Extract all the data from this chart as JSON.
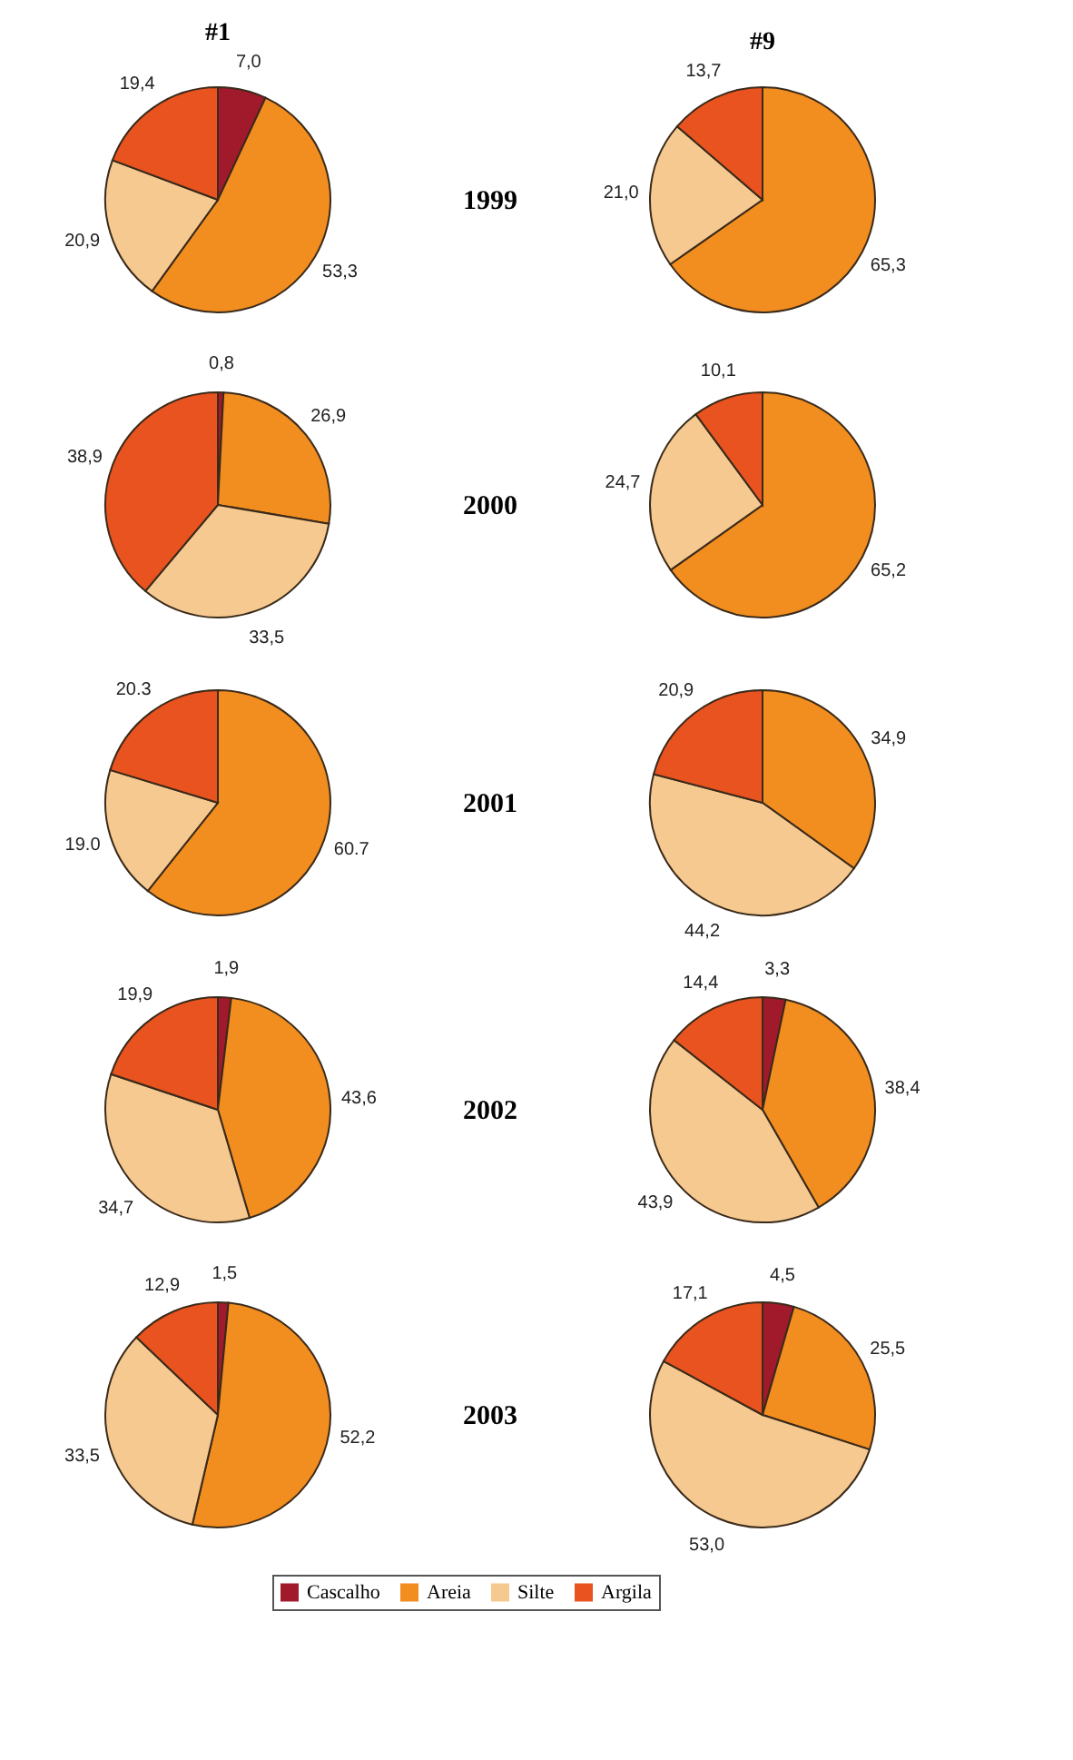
{
  "chart_data": [
    {
      "type": "pie",
      "title": "#1",
      "annotations": [
        "1999"
      ],
      "legend": "bottom",
      "categories": [
        "Cascalho",
        "Areia",
        "Silte",
        "Argila"
      ],
      "values": [
        7.0,
        53.3,
        20.9,
        19.4
      ],
      "value_labels": [
        "7,0",
        "53,3",
        "20,9",
        "19,4"
      ],
      "colors": [
        "#a01a2c",
        "#f28d1f",
        "#f6c990",
        "#e8531f"
      ]
    },
    {
      "type": "pie",
      "title": "#9",
      "categories": [
        null,
        null,
        null
      ],
      "values": [
        65.3,
        21.0,
        13.7
      ],
      "value_labels": [
        "65,3",
        "21,0",
        "13,7"
      ],
      "colors": [
        "#f28d1f",
        "#f6c990",
        "#e8531f"
      ]
    },
    {
      "type": "pie",
      "annotations": [
        "2000"
      ],
      "categories": [
        null,
        null,
        null,
        null
      ],
      "values": [
        0.8,
        26.9,
        33.5,
        38.9
      ],
      "value_labels": [
        "0,8",
        "26,9",
        "33,5",
        "38,9"
      ],
      "colors": [
        "#a01a2c",
        "#f28d1f",
        "#f6c990",
        "#e8531f"
      ]
    },
    {
      "type": "pie",
      "categories": [
        null,
        null,
        null
      ],
      "values": [
        65.2,
        24.7,
        10.1
      ],
      "value_labels": [
        "65,2",
        "24,7",
        "10,1"
      ],
      "colors": [
        "#f28d1f",
        "#f6c990",
        "#e8531f"
      ]
    },
    {
      "type": "pie",
      "annotations": [
        "2001"
      ],
      "categories": [
        null,
        null,
        null
      ],
      "values": [
        60.7,
        19.0,
        20.3
      ],
      "value_labels": [
        "60.7",
        "19.0",
        "20.3"
      ],
      "colors": [
        "#f28d1f",
        "#f6c990",
        "#e8531f"
      ]
    },
    {
      "type": "pie",
      "categories": [
        null,
        null,
        null
      ],
      "values": [
        34.9,
        44.2,
        20.9
      ],
      "value_labels": [
        "34,9",
        "44,2",
        "20,9"
      ],
      "colors": [
        "#f28d1f",
        "#f6c990",
        "#e8531f"
      ]
    },
    {
      "type": "pie",
      "annotations": [
        "2002"
      ],
      "categories": [
        null,
        null,
        null,
        null
      ],
      "values": [
        1.9,
        43.6,
        34.7,
        19.9
      ],
      "value_labels": [
        "1,9",
        "43,6",
        "34,7",
        "19,9"
      ],
      "colors": [
        "#a01a2c",
        "#f28d1f",
        "#f6c990",
        "#e8531f"
      ]
    },
    {
      "type": "pie",
      "categories": [
        null,
        null,
        null,
        null
      ],
      "values": [
        3.3,
        38.4,
        43.9,
        14.4
      ],
      "value_labels": [
        "3,3",
        "38,4",
        "43,9",
        "14,4"
      ],
      "colors": [
        "#a01a2c",
        "#f28d1f",
        "#f6c990",
        "#e8531f"
      ]
    },
    {
      "type": "pie",
      "annotations": [
        "2003"
      ],
      "categories": [
        null,
        null,
        null,
        null
      ],
      "values": [
        1.5,
        52.2,
        33.5,
        12.9
      ],
      "value_labels": [
        "1,5",
        "52,2",
        "33,5",
        "12,9"
      ],
      "colors": [
        "#a01a2c",
        "#f28d1f",
        "#f6c990",
        "#e8531f"
      ]
    },
    {
      "type": "pie",
      "categories": [
        null,
        null,
        null,
        null
      ],
      "values": [
        4.5,
        25.5,
        53.0,
        17.1
      ],
      "value_labels": [
        "4,5",
        "25,5",
        "53,0",
        "17,1"
      ],
      "colors": [
        "#a01a2c",
        "#f28d1f",
        "#f6c990",
        "#e8531f"
      ]
    }
  ]
}
